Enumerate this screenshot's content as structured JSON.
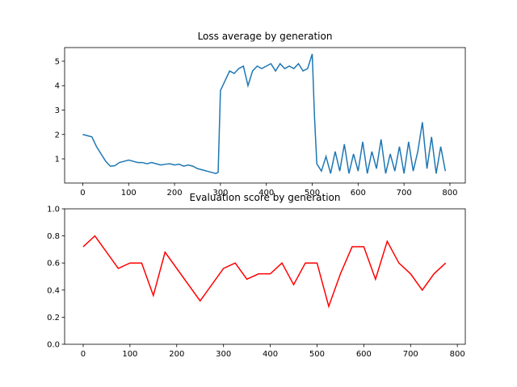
{
  "chart_data": [
    {
      "type": "line",
      "title": "Loss average by generation",
      "x": [
        0,
        10,
        20,
        30,
        40,
        50,
        60,
        70,
        80,
        90,
        100,
        110,
        120,
        130,
        140,
        150,
        160,
        170,
        180,
        190,
        200,
        210,
        220,
        230,
        240,
        250,
        260,
        270,
        280,
        290,
        295,
        300,
        310,
        320,
        330,
        340,
        350,
        360,
        370,
        380,
        390,
        400,
        410,
        420,
        430,
        440,
        450,
        460,
        470,
        480,
        490,
        500,
        505,
        510,
        520,
        530,
        540,
        550,
        560,
        570,
        580,
        590,
        600,
        610,
        620,
        630,
        640,
        650,
        660,
        670,
        680,
        690,
        700,
        710,
        720,
        730,
        740,
        750,
        760,
        770,
        780,
        790
      ],
      "series": [
        {
          "color": "#1f77b4",
          "values": [
            2.0,
            1.95,
            1.9,
            1.5,
            1.2,
            0.9,
            0.7,
            0.72,
            0.85,
            0.9,
            0.95,
            0.9,
            0.85,
            0.85,
            0.8,
            0.85,
            0.8,
            0.75,
            0.78,
            0.8,
            0.75,
            0.78,
            0.7,
            0.75,
            0.7,
            0.6,
            0.55,
            0.5,
            0.45,
            0.4,
            0.45,
            3.8,
            4.2,
            4.6,
            4.5,
            4.7,
            4.8,
            4.0,
            4.6,
            4.8,
            4.7,
            4.8,
            4.9,
            4.6,
            4.9,
            4.7,
            4.8,
            4.7,
            4.9,
            4.6,
            4.7,
            5.3,
            2.7,
            0.8,
            0.5,
            1.1,
            0.4,
            1.3,
            0.5,
            1.6,
            0.4,
            1.2,
            0.5,
            1.7,
            0.4,
            1.3,
            0.6,
            1.8,
            0.4,
            1.2,
            0.5,
            1.5,
            0.4,
            1.7,
            0.5,
            1.3,
            2.5,
            0.6,
            1.9,
            0.4,
            1.5,
            0.5
          ]
        }
      ],
      "xlim": [
        -39.5,
        833.5
      ],
      "xticks": [
        0,
        100,
        200,
        300,
        400,
        500,
        600,
        700,
        800
      ],
      "ylim": [
        0.01,
        5.56
      ],
      "yticks": [
        1,
        2,
        3,
        4,
        5
      ]
    },
    {
      "type": "line",
      "title": "Evaluation score by generation",
      "x": [
        0,
        25,
        75,
        100,
        125,
        150,
        175,
        250,
        300,
        325,
        350,
        375,
        400,
        425,
        450,
        475,
        500,
        525,
        550,
        575,
        600,
        625,
        650,
        675,
        700,
        725,
        750,
        775
      ],
      "series": [
        {
          "color": "#ff0000",
          "values": [
            0.72,
            0.8,
            0.56,
            0.6,
            0.6,
            0.36,
            0.68,
            0.32,
            0.56,
            0.6,
            0.48,
            0.52,
            0.52,
            0.6,
            0.44,
            0.6,
            0.6,
            0.28,
            0.52,
            0.72,
            0.72,
            0.48,
            0.76,
            0.6,
            0.52,
            0.4,
            0.52,
            0.6
          ]
        }
      ],
      "xlim": [
        -39.7,
        817
      ],
      "xticks": [
        0,
        100,
        200,
        300,
        400,
        500,
        600,
        700,
        800
      ],
      "ylim": [
        0,
        1
      ],
      "yticks": [
        {
          "value": 0,
          "label": "0.0"
        },
        {
          "value": 0.2,
          "label": "0.2"
        },
        {
          "value": 0.4,
          "label": "0.4"
        },
        {
          "value": 0.6,
          "label": "0.6"
        },
        {
          "value": 0.8,
          "label": "0.8"
        },
        {
          "value": 1,
          "label": "1.0"
        }
      ]
    }
  ]
}
